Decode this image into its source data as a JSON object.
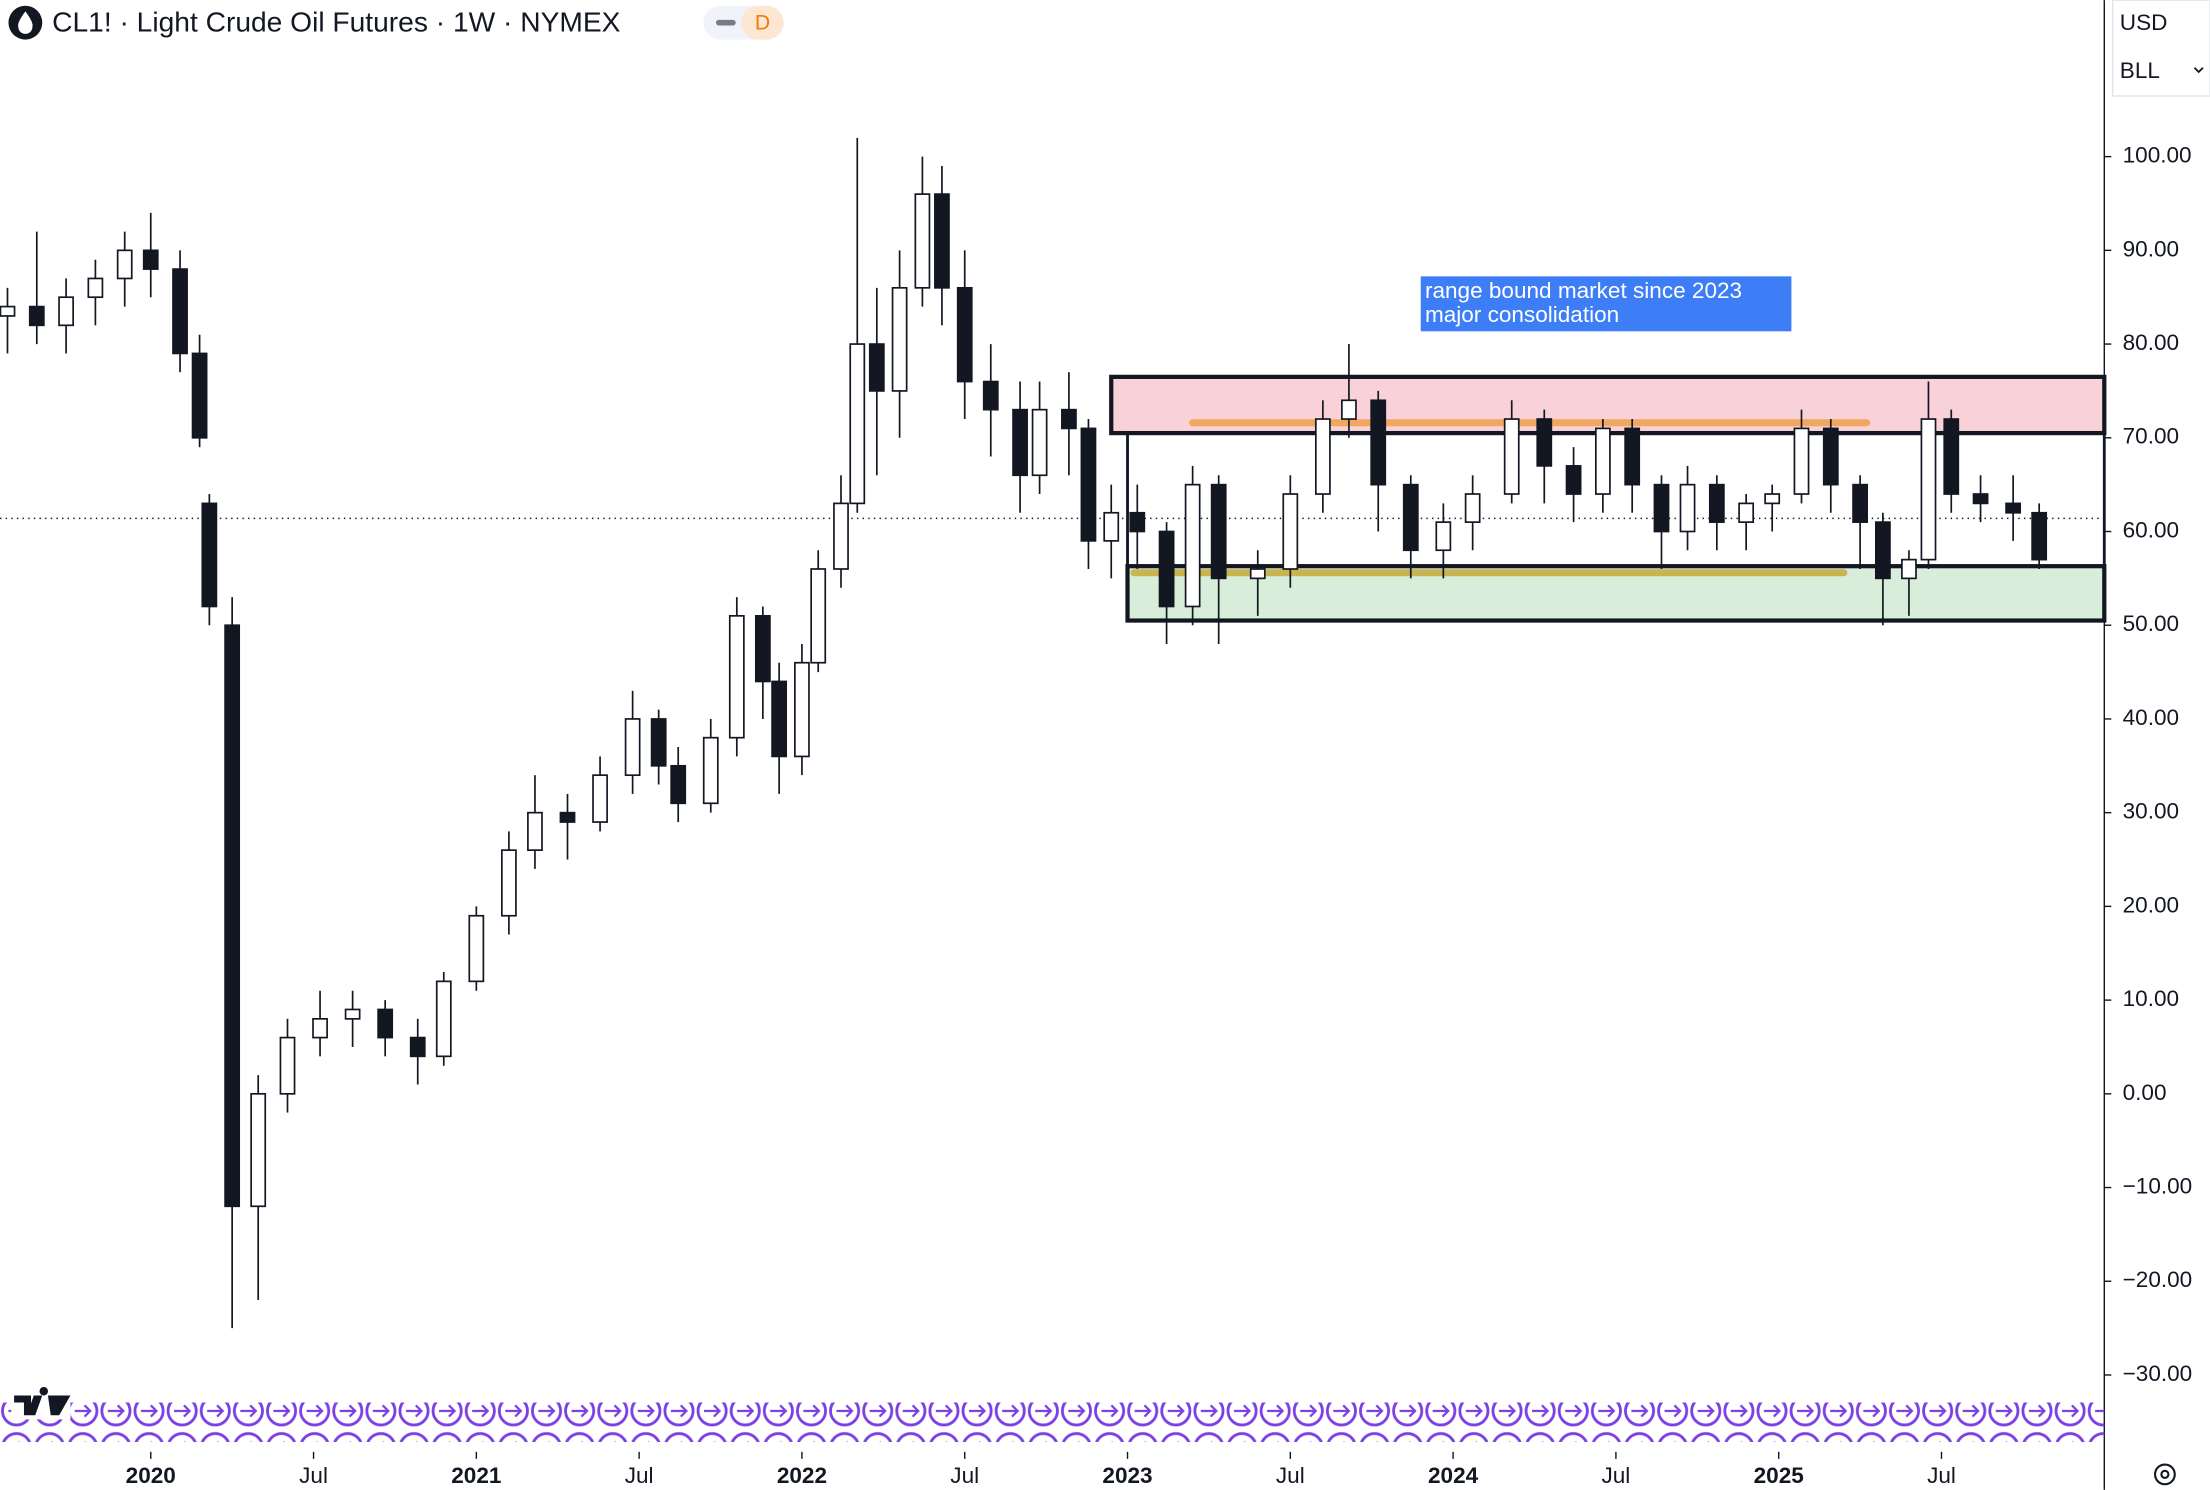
{
  "chart_data": {
    "type": "candlestick",
    "title": "CL1! · Light Crude Oil Futures · 1W · NYMEX",
    "badge": "D",
    "currency": "USD",
    "unit": "BLL",
    "xlim": [
      2019.537,
      2026.0
    ],
    "xticks": [
      2020,
      {
        "value": 2020.5,
        "label": "Jul"
      },
      2021,
      {
        "value": 2021.5,
        "label": "Jul"
      },
      2022,
      {
        "value": 2022.5,
        "label": "Jul"
      },
      2023,
      {
        "value": 2023.5,
        "label": "Jul"
      },
      2024,
      {
        "value": 2024.5,
        "label": "Jul"
      },
      2025,
      {
        "value": 2025.5,
        "label": "Jul"
      }
    ],
    "ylim": [
      -38.2,
      116.7
    ],
    "yticks": [
      {
        "value": 100,
        "label": "100.00"
      },
      {
        "value": 90,
        "label": "90.00"
      },
      {
        "value": 80,
        "label": "80.00"
      },
      {
        "value": 70,
        "label": "70.00"
      },
      {
        "value": 60,
        "label": "60.00"
      },
      {
        "value": 50,
        "label": "50.00"
      },
      {
        "value": 40,
        "label": "40.00"
      },
      {
        "value": 30,
        "label": "30.00"
      },
      {
        "value": 20,
        "label": "20.00"
      },
      {
        "value": 10,
        "label": "10.00"
      },
      {
        "value": 0,
        "label": "0.00"
      },
      {
        "value": -10,
        "label": "−10.00"
      },
      {
        "value": -20,
        "label": "−20.00"
      },
      {
        "value": -30,
        "label": "−30.00"
      }
    ],
    "x": [
      2019.56,
      2019.65,
      2019.74,
      2019.83,
      2019.92,
      2020.0,
      2020.09,
      2020.15,
      2020.18,
      2020.25,
      2020.33,
      2020.42,
      2020.52,
      2020.62,
      2020.72,
      2020.82,
      2020.9,
      2021.0,
      2021.1,
      2021.18,
      2021.28,
      2021.38,
      2021.48,
      2021.56,
      2021.62,
      2021.72,
      2021.8,
      2021.88,
      2021.93,
      2022.0,
      2022.05,
      2022.12,
      2022.17,
      2022.23,
      2022.3,
      2022.37,
      2022.43,
      2022.5,
      2022.58,
      2022.67,
      2022.73,
      2022.82,
      2022.88,
      2022.95,
      2023.03,
      2023.12,
      2023.2,
      2023.28,
      2023.4,
      2023.5,
      2023.6,
      2023.68,
      2023.77,
      2023.87,
      2023.97,
      2024.06,
      2024.18,
      2024.28,
      2024.37,
      2024.46,
      2024.55,
      2024.64,
      2024.72,
      2024.81,
      2024.9,
      2024.98,
      2025.07,
      2025.16,
      2025.25,
      2025.32,
      2025.4,
      2025.46,
      2025.53,
      2025.62,
      2025.72,
      2025.8
    ],
    "open": [
      83,
      84,
      82,
      85,
      87,
      90,
      88,
      79,
      63,
      50,
      -12,
      0,
      6,
      8,
      9,
      6,
      4,
      12,
      19,
      26,
      30,
      29,
      34,
      40,
      35,
      31,
      38,
      51,
      44,
      36,
      46,
      56,
      63,
      80,
      75,
      86,
      96,
      86,
      76,
      73,
      66,
      73,
      71,
      59,
      62,
      60,
      52,
      65,
      55,
      56,
      64,
      72,
      74,
      65,
      58,
      61,
      64,
      72,
      67,
      64,
      71,
      65,
      60,
      65,
      61,
      63,
      64,
      71,
      65,
      61,
      55,
      57,
      72,
      64,
      63,
      62
    ],
    "high": [
      86,
      92,
      87,
      89,
      92,
      94,
      90,
      81,
      64,
      53,
      2,
      8,
      11,
      11,
      10,
      8,
      13,
      20,
      28,
      34,
      32,
      36,
      43,
      41,
      37,
      40,
      53,
      52,
      46,
      48,
      58,
      66,
      102,
      86,
      90,
      100,
      99,
      90,
      80,
      76,
      76,
      77,
      72,
      65,
      65,
      61,
      67,
      66,
      58,
      66,
      74,
      80,
      75,
      66,
      63,
      66,
      74,
      73,
      69,
      72,
      72,
      66,
      67,
      66,
      64,
      65,
      73,
      72,
      66,
      62,
      58,
      76,
      73,
      66,
      66,
      63
    ],
    "low": [
      79,
      80,
      79,
      82,
      84,
      85,
      77,
      69,
      50,
      -25,
      -22,
      -2,
      4,
      5,
      4,
      1,
      3,
      11,
      17,
      24,
      25,
      28,
      32,
      33,
      29,
      30,
      36,
      40,
      32,
      34,
      45,
      54,
      62,
      66,
      70,
      84,
      82,
      72,
      68,
      62,
      64,
      66,
      56,
      55,
      56,
      48,
      50,
      48,
      51,
      54,
      62,
      70,
      60,
      55,
      55,
      58,
      63,
      63,
      61,
      62,
      62,
      56,
      58,
      58,
      58,
      60,
      63,
      62,
      56,
      50,
      51,
      56,
      62,
      61,
      59,
      56
    ],
    "close": [
      84,
      82,
      85,
      87,
      90,
      88,
      79,
      70,
      52,
      -12,
      0,
      6,
      8,
      9,
      6,
      4,
      12,
      19,
      26,
      30,
      29,
      34,
      40,
      35,
      31,
      38,
      51,
      44,
      36,
      46,
      56,
      63,
      80,
      75,
      86,
      96,
      86,
      76,
      73,
      66,
      73,
      71,
      59,
      62,
      60,
      52,
      65,
      55,
      56,
      64,
      72,
      74,
      65,
      58,
      61,
      64,
      72,
      67,
      64,
      71,
      65,
      60,
      65,
      61,
      63,
      64,
      71,
      65,
      61,
      55,
      57,
      72,
      64,
      63,
      62,
      57
    ],
    "price_line": 61.4,
    "zones": [
      {
        "x0": 2022.95,
        "x1": 2026.0,
        "y0": 70.5,
        "y1": 76.5,
        "color": "#f8d2d8"
      },
      {
        "x0": 2023.0,
        "x1": 2026.0,
        "y0": 50.5,
        "y1": 56.3,
        "color": "#d8eedb"
      }
    ],
    "levels": [
      {
        "x0": 2023.2,
        "x1": 2025.27,
        "y": 71.6,
        "color": "#f0a860"
      },
      {
        "x0": 2023.02,
        "x1": 2025.2,
        "y": 55.6,
        "color": "#c8b450"
      }
    ],
    "annotation": [
      "range bound market since 2023",
      "major consolidation"
    ]
  }
}
